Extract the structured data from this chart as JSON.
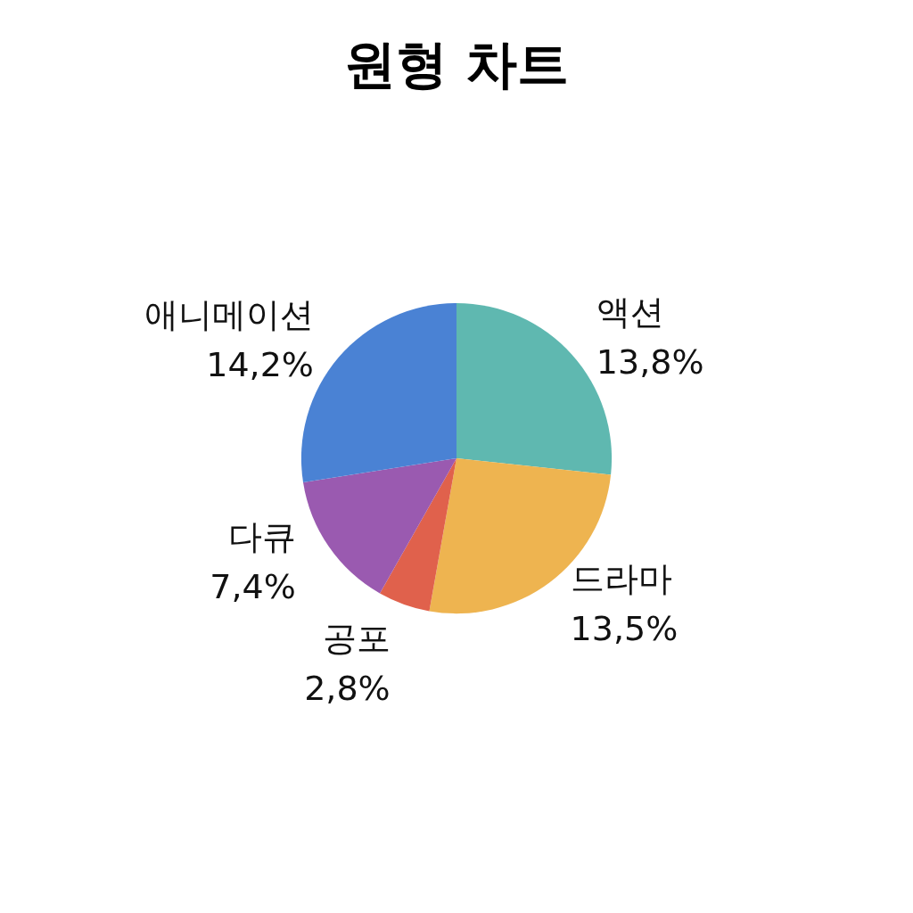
{
  "chart_data": {
    "type": "pie",
    "title": "원형 차트",
    "categories": [
      "액션",
      "드라마",
      "공포",
      "다큐",
      "애니메이션"
    ],
    "values": [
      13.8,
      13.5,
      2.8,
      7.4,
      14.2
    ],
    "value_labels": [
      "13,8%",
      "13,5%",
      "2,8%",
      "7,4%",
      "14,2%"
    ],
    "colors": [
      "#5fb8b0",
      "#eeb450",
      "#e0614c",
      "#9a5ab0",
      "#4a82d4"
    ],
    "legend": false
  }
}
